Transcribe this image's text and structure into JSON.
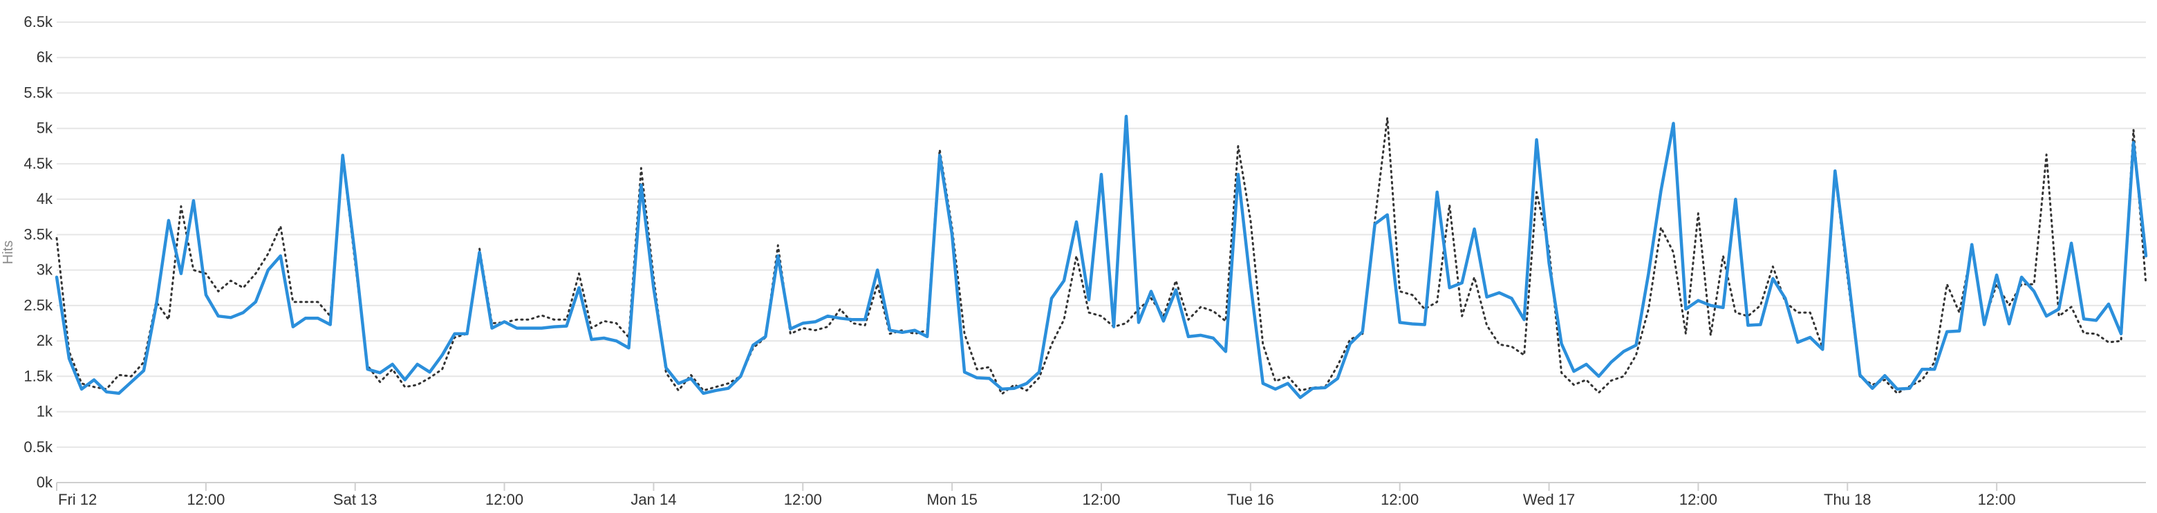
{
  "chart_data": {
    "type": "line",
    "ylabel": "Hits",
    "ylim": [
      0,
      6500
    ],
    "yticks": [
      {
        "value": 0,
        "label": "0k"
      },
      {
        "value": 500,
        "label": "0.5k"
      },
      {
        "value": 1000,
        "label": "1k"
      },
      {
        "value": 1500,
        "label": "1.5k"
      },
      {
        "value": 2000,
        "label": "2k"
      },
      {
        "value": 2500,
        "label": "2.5k"
      },
      {
        "value": 3000,
        "label": "3k"
      },
      {
        "value": 3500,
        "label": "3.5k"
      },
      {
        "value": 4000,
        "label": "4k"
      },
      {
        "value": 4500,
        "label": "4.5k"
      },
      {
        "value": 5000,
        "label": "5k"
      },
      {
        "value": 5500,
        "label": "5.5k"
      },
      {
        "value": 6000,
        "label": "6k"
      },
      {
        "value": 6500,
        "label": "6.5k"
      }
    ],
    "xlim": [
      "Fri 12 00:00",
      "Thu 18 23:00"
    ],
    "xticks": [
      {
        "at": "Fri 12 00:00",
        "label": "Fri 12"
      },
      {
        "at": "Fri 12 12:00",
        "label": "12:00"
      },
      {
        "at": "Sat 13 00:00",
        "label": "Sat 13"
      },
      {
        "at": "Sat 13 12:00",
        "label": "12:00"
      },
      {
        "at": "Sun 14 00:00",
        "label": "Jan 14"
      },
      {
        "at": "Sun 14 12:00",
        "label": "12:00"
      },
      {
        "at": "Mon 15 00:00",
        "label": "Mon 15"
      },
      {
        "at": "Mon 15 12:00",
        "label": "12:00"
      },
      {
        "at": "Tue 16 00:00",
        "label": "Tue 16"
      },
      {
        "at": "Tue 16 12:00",
        "label": "12:00"
      },
      {
        "at": "Wed 17 00:00",
        "label": "Wed 17"
      },
      {
        "at": "Wed 17 12:00",
        "label": "12:00"
      },
      {
        "at": "Thu 18 00:00",
        "label": "Thu 18"
      },
      {
        "at": "Thu 18 12:00",
        "label": "12:00"
      }
    ],
    "grid": true,
    "x_interval": "hourly",
    "series": [
      {
        "color": "#2b8fdb",
        "style": "solid",
        "values": [
          2900,
          1750,
          1320,
          1450,
          1280,
          1260,
          1420,
          1580,
          2500,
          3700,
          2950,
          3980,
          2650,
          2350,
          2330,
          2400,
          2550,
          3000,
          3200,
          2200,
          2320,
          2320,
          2230,
          4620,
          3200,
          1600,
          1550,
          1670,
          1450,
          1670,
          1560,
          1800,
          2100,
          2100,
          3250,
          2180,
          2270,
          2180,
          2180,
          2180,
          2200,
          2210,
          2750,
          2020,
          2040,
          2000,
          1900,
          4200,
          2750,
          1620,
          1400,
          1470,
          1260,
          1300,
          1330,
          1500,
          1940,
          2060,
          3200,
          2170,
          2250,
          2270,
          2350,
          2320,
          2300,
          2300,
          3000,
          2150,
          2120,
          2150,
          2060,
          4620,
          3500,
          1560,
          1480,
          1470,
          1320,
          1330,
          1400,
          1560,
          2600,
          2850,
          3680,
          2580,
          4350,
          2200,
          5170,
          2260,
          2700,
          2280,
          2720,
          2060,
          2080,
          2040,
          1850,
          4350,
          2800,
          1400,
          1320,
          1400,
          1200,
          1330,
          1340,
          1470,
          1960,
          2130,
          3650,
          3780,
          2260,
          2240,
          2230,
          4100,
          2750,
          2820,
          3580,
          2620,
          2680,
          2600,
          2300,
          4840,
          3100,
          1960,
          1570,
          1670,
          1500,
          1700,
          1850,
          1940,
          2950,
          4120,
          5070,
          2450,
          2570,
          2500,
          2470,
          4000,
          2220,
          2230,
          2880,
          2600,
          1980,
          2050,
          1880,
          4400,
          3000,
          1520,
          1330,
          1510,
          1320,
          1330,
          1600,
          1600,
          2130,
          2140,
          3360,
          2230,
          2930,
          2240,
          2900,
          2700,
          2350,
          2450,
          3380,
          2310,
          2290,
          2520,
          2100,
          4800,
          3200
        ]
      },
      {
        "color": "#333333",
        "style": "dotted",
        "values": [
          3450,
          1850,
          1400,
          1350,
          1320,
          1520,
          1500,
          1700,
          2550,
          2300,
          3900,
          3000,
          2950,
          2700,
          2850,
          2750,
          2950,
          3230,
          3620,
          2550,
          2550,
          2550,
          2350,
          4600,
          3100,
          1650,
          1420,
          1600,
          1350,
          1380,
          1480,
          1600,
          2050,
          2100,
          3300,
          2250,
          2260,
          2300,
          2300,
          2360,
          2300,
          2300,
          2950,
          2180,
          2280,
          2250,
          2050,
          4440,
          2900,
          1550,
          1300,
          1520,
          1300,
          1350,
          1400,
          1500,
          1900,
          2050,
          3350,
          2100,
          2180,
          2150,
          2200,
          2450,
          2250,
          2220,
          2800,
          2100,
          2150,
          2100,
          2150,
          4700,
          3600,
          2100,
          1600,
          1630,
          1250,
          1380,
          1300,
          1480,
          1950,
          2300,
          3200,
          2400,
          2350,
          2200,
          2250,
          2450,
          2600,
          2350,
          2850,
          2300,
          2480,
          2420,
          2280,
          4750,
          3700,
          1950,
          1430,
          1500,
          1300,
          1340,
          1350,
          1650,
          2020,
          2100,
          3700,
          5150,
          2700,
          2650,
          2450,
          2550,
          3920,
          2350,
          2900,
          2220,
          1950,
          1920,
          1800,
          4100,
          3300,
          1550,
          1380,
          1450,
          1270,
          1440,
          1500,
          1800,
          2450,
          3600,
          3250,
          2100,
          3800,
          2080,
          3200,
          2400,
          2350,
          2500,
          3050,
          2550,
          2400,
          2400,
          1900,
          4350,
          2900,
          1500,
          1380,
          1450,
          1260,
          1360,
          1450,
          1700,
          2800,
          2400,
          3300,
          2280,
          2800,
          2500,
          2800,
          2800,
          4630,
          2350,
          2480,
          2110,
          2100,
          1980,
          2000,
          4980,
          2800
        ]
      }
    ]
  }
}
